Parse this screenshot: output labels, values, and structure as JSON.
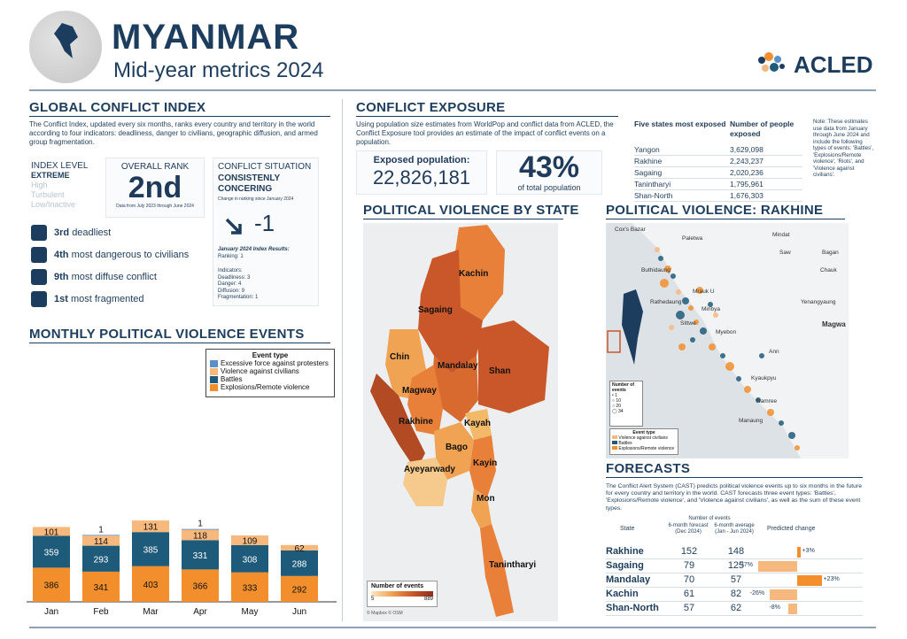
{
  "header": {
    "title": "MYANMAR",
    "subtitle": "Mid-year metrics 2024",
    "brand": "ACLED"
  },
  "gci": {
    "title": "GLOBAL CONFLICT INDEX",
    "desc": "The Conflict Index, updated every six months, ranks every country and territory in the world according to four indicators: deadliness, danger to civilians, geographic diffusion, and armed group fragmentation.",
    "index_level_label": "INDEX LEVEL",
    "levels": [
      "EXTREME",
      "High",
      "Turbulent",
      "Low/Inactive"
    ],
    "overall_rank_label": "OVERALL RANK",
    "overall_rank": "2nd",
    "rank_note": "Data from July 2023 through June 2024",
    "situation_label": "CONFLICT SITUATION",
    "situation": "CONSISTENLY CONCERING",
    "change_note": "Change in ranking since January 2024",
    "change": "-1",
    "jan_title": "January 2024 Index Results:",
    "jan_ranking": "Ranking: 1",
    "indicators_label": "Indicators:",
    "indicators": [
      "Deadliness: 3",
      "Danger: 4",
      "Diffusion: 9",
      "Fragmentation: 1"
    ],
    "rows": [
      {
        "rank": "3rd",
        "text": "deadliest",
        "icon": "person-icon"
      },
      {
        "rank": "4th",
        "text": "most dangerous to civilians",
        "icon": "group-icon"
      },
      {
        "rank": "9th",
        "text": "most diffuse conflict",
        "icon": "location-icon"
      },
      {
        "rank": "1st",
        "text": "most fragmented",
        "icon": "fragment-icon"
      }
    ]
  },
  "monthly": {
    "title": "MONTHLY POLITICAL VIOLENCE EVENTS",
    "legend_title": "Event type"
  },
  "chart_data": [
    {
      "type": "bar",
      "stacked": true,
      "categories": [
        "Jan",
        "Feb",
        "Mar",
        "Apr",
        "May",
        "Jun"
      ],
      "series": [
        {
          "name": "Explosions/Remote violence",
          "color": "#f28e2b",
          "values": [
            386,
            341,
            403,
            366,
            333,
            292
          ]
        },
        {
          "name": "Battles",
          "color": "#1e5a79",
          "values": [
            359,
            293,
            385,
            331,
            308,
            288
          ]
        },
        {
          "name": "Violence against civilians",
          "color": "#f6b87d",
          "values": [
            101,
            114,
            131,
            118,
            109,
            62
          ]
        },
        {
          "name": "Excessive force against protesters",
          "color": "#5b8fc8",
          "values": [
            0,
            1,
            0,
            1,
            0,
            0
          ]
        }
      ],
      "legend_order": [
        "Excessive force against protesters",
        "Violence against civilians",
        "Battles",
        "Explosions/Remote violence"
      ]
    },
    {
      "type": "bar",
      "title": "FORECASTS",
      "categories": [
        "Rakhine",
        "Sagaing",
        "Mandalay",
        "Kachin",
        "Shan-North"
      ],
      "series": [
        {
          "name": "6-month forecast (Dec 2024)",
          "values": [
            152,
            79,
            70,
            61,
            57
          ]
        },
        {
          "name": "6-month average (Jan - Jun 2024)",
          "values": [
            148,
            125,
            57,
            82,
            62
          ]
        },
        {
          "name": "Predicted change",
          "values": [
            3,
            -37,
            23,
            -26,
            -8
          ]
        }
      ]
    }
  ],
  "exposure": {
    "title": "CONFLICT EXPOSURE",
    "desc": "Using population size estimates from WorldPop and conflict data from ACLED, the Conflict Exposure tool provides an estimate of the impact of conflict events on a population.",
    "exposed_label": "Exposed population:",
    "exposed_value": "22,826,181",
    "pct": "43%",
    "pct_label": "of total population",
    "col1": "Five states most exposed",
    "col2": "Number of people exposed",
    "states": [
      {
        "name": "Yangon",
        "value": "3,629,098"
      },
      {
        "name": "Rakhine",
        "value": "2,243,237"
      },
      {
        "name": "Sagaing",
        "value": "2,020,236"
      },
      {
        "name": "Tanintharyi",
        "value": "1,795,961"
      },
      {
        "name": "Shan-North",
        "value": "1,676,303"
      }
    ],
    "note": "Note: These estimates use data from January through June 2024 and include the following types of events: 'Battles', 'Explosions/Remote violence', 'Riots', and 'Violence against civilians'."
  },
  "pv_state": {
    "title": "POLITICAL VIOLENCE BY STATE",
    "labels": [
      "Kachin",
      "Sagaing",
      "Chin",
      "Mandalay",
      "Shan",
      "Magway",
      "Rakhine",
      "Kayah",
      "Bago",
      "Ayeyarwady",
      "Kayin",
      "Mon",
      "Tanintharyi"
    ],
    "legend_title": "Number of events",
    "legend_min": "5",
    "legend_max": "889",
    "credit": "© Mapbox © OSM"
  },
  "pv_rakhine": {
    "title": "POLITICAL VIOLENCE: RAKHINE",
    "places": [
      "Cox's Bazar",
      "Paletwa",
      "Mindat",
      "Saw",
      "Buthidaung",
      "Bagan",
      "Chauk",
      "Mrauk U",
      "Rathedaung",
      "Minbya",
      "Yenangyaung",
      "Sittwe",
      "Myebon",
      "Magwa",
      "Ann",
      "Kyaukpyu",
      "Ramree",
      "Manaung"
    ],
    "size_title": "Number of events",
    "sizes": [
      "1",
      "10",
      "20",
      "34"
    ],
    "type_title": "Event type",
    "types": [
      "Violence against civilians",
      "Battles",
      "Explosions/Remote violence"
    ]
  },
  "forecasts": {
    "title": "FORECASTS",
    "desc": "The Conflict Alert System (CAST) predicts political violence events up to six months in the future for every country and territory in the world. CAST forecasts three event types: 'Battles', 'Explosions/Remote violence', and 'Violence against civilians', as well as the sum of these event types.",
    "num_events": "Number of events",
    "state_col": "State",
    "forecast_col": "6-month forecast (Dec 2024)",
    "avg_col": "6-month average (Jan - Jun 2024)",
    "change_col": "Predicted change",
    "rows": [
      {
        "state": "Rakhine",
        "forecast": "152",
        "avg": "148",
        "change": "+3%"
      },
      {
        "state": "Sagaing",
        "forecast": "79",
        "avg": "125",
        "change": "-37%"
      },
      {
        "state": "Mandalay",
        "forecast": "70",
        "avg": "57",
        "change": "+23%"
      },
      {
        "state": "Kachin",
        "forecast": "61",
        "avg": "82",
        "change": "-26%"
      },
      {
        "state": "Shan-North",
        "forecast": "57",
        "avg": "62",
        "change": "-8%"
      }
    ]
  },
  "colors": {
    "navy": "#1d3d5e",
    "orange": "#f28e2b",
    "light_orange": "#f6b87d",
    "teal": "#1e5a79",
    "blue": "#5b8fc8"
  }
}
